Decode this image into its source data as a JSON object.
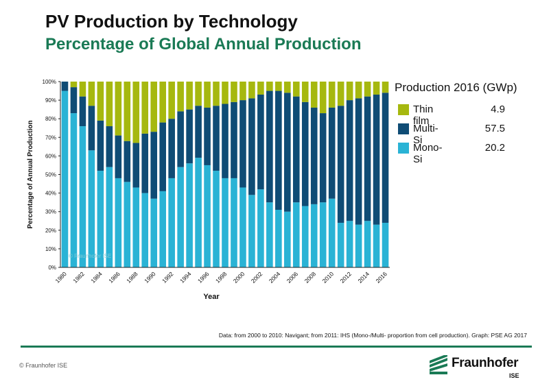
{
  "header": {
    "title": "PV Production by Technology",
    "subtitle": "Percentage of Global Annual Production"
  },
  "legend": {
    "title": "Production 2016 (GWp)",
    "items": [
      {
        "label": "Thin film",
        "value": "4.9",
        "color": "#a6b80f"
      },
      {
        "label": "Multi-Si",
        "value": "57.5",
        "color": "#0f4c75"
      },
      {
        "label": "Mono-Si",
        "value": "20.2",
        "color": "#2ab3d5"
      }
    ]
  },
  "watermark": "© Fraunhofer ISE",
  "footnote": "Data: from 2000 to 2010: Navigant; from 2011: IHS (Mono-/Multi- proportion from cell production). Graph: PSE AG 2017",
  "copyright": "© Fraunhofer ISE",
  "logo": {
    "name": "Fraunhofer",
    "sub": "ISE"
  },
  "chart_data": {
    "type": "bar",
    "stacked": true,
    "xlabel": "Year",
    "ylabel": "Percentage of Annual Production",
    "ylim": [
      0,
      100
    ],
    "yticks": [
      "0%",
      "10%",
      "20%",
      "30%",
      "40%",
      "50%",
      "60%",
      "70%",
      "80%",
      "90%",
      "100%"
    ],
    "categories": [
      "1980",
      "1981",
      "1982",
      "1983",
      "1984",
      "1985",
      "1986",
      "1987",
      "1988",
      "1989",
      "1990",
      "1991",
      "1992",
      "1993",
      "1994",
      "1995",
      "1996",
      "1997",
      "1998",
      "1999",
      "2000",
      "2001",
      "2002",
      "2003",
      "2004",
      "2005",
      "2006",
      "2007",
      "2008",
      "2009",
      "2010",
      "2011",
      "2012",
      "2013",
      "2014",
      "2015",
      "2016"
    ],
    "xtick_labels": [
      "1980",
      "",
      "1982",
      "",
      "1984",
      "",
      "1986",
      "",
      "1988",
      "",
      "1990",
      "",
      "1992",
      "",
      "1994",
      "",
      "1996",
      "",
      "1998",
      "",
      "2000",
      "",
      "2002",
      "",
      "2004",
      "",
      "2006",
      "",
      "2008",
      "",
      "2010",
      "",
      "2012",
      "",
      "2014",
      "",
      "2016"
    ],
    "series": [
      {
        "name": "Mono-Si",
        "color": "#2ab3d5",
        "values": [
          95,
          83,
          76,
          63,
          52,
          54,
          48,
          46,
          43,
          40,
          37,
          41,
          48,
          54,
          56,
          59,
          55,
          52,
          48,
          48,
          43,
          39,
          42,
          35,
          31,
          30,
          35,
          33,
          34,
          35,
          37,
          24,
          25,
          23,
          25,
          23,
          24
        ]
      },
      {
        "name": "Multi-Si",
        "color": "#0f4c75",
        "values": [
          5,
          14,
          16,
          24,
          27,
          22,
          23,
          22,
          24,
          32,
          36,
          37,
          32,
          30,
          29,
          28,
          31,
          35,
          40,
          41,
          47,
          52,
          51,
          60,
          64,
          64,
          57,
          56,
          52,
          48,
          49,
          63,
          65,
          68,
          67,
          70,
          70
        ]
      },
      {
        "name": "Thin film",
        "color": "#a6b80f",
        "values": [
          0,
          3,
          8,
          13,
          21,
          24,
          29,
          32,
          33,
          28,
          27,
          22,
          20,
          16,
          15,
          13,
          14,
          13,
          12,
          11,
          10,
          9,
          7,
          5,
          5,
          6,
          8,
          11,
          14,
          17,
          14,
          13,
          10,
          9,
          8,
          7,
          6
        ]
      }
    ]
  }
}
